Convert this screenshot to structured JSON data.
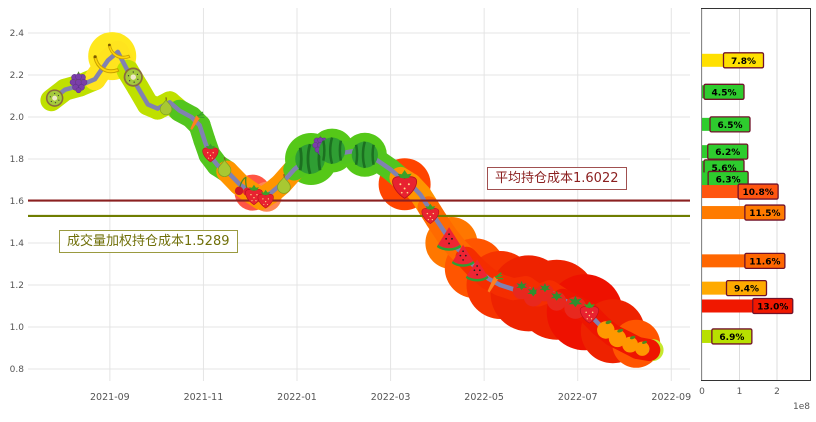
{
  "chart_data": [
    {
      "type": "line",
      "name": "price-with-cost-lines",
      "title": "",
      "xlabel": "",
      "ylabel": "",
      "xlim": [
        -0.75,
        13.4
      ],
      "ylim": [
        0.8,
        2.4
      ],
      "grid": true,
      "y_ticks": [
        0.8,
        1.0,
        1.2,
        1.4,
        1.6,
        1.8,
        2.0,
        2.2,
        2.4
      ],
      "x_ticks": [
        {
          "t": 1,
          "label": "2021-09"
        },
        {
          "t": 3,
          "label": "2021-11"
        },
        {
          "t": 5,
          "label": "2022-01"
        },
        {
          "t": 7,
          "label": "2022-03"
        },
        {
          "t": 9,
          "label": "2022-05"
        },
        {
          "t": 11,
          "label": "2022-07"
        },
        {
          "t": 13,
          "label": "2022-09"
        }
      ],
      "series": [
        {
          "name": "price",
          "color": "#8181b1",
          "points": [
            [
              -0.25,
              2.08
            ],
            [
              0.04,
              2.13
            ],
            [
              0.36,
              2.15
            ],
            [
              0.68,
              2.18
            ],
            [
              0.96,
              2.27
            ],
            [
              1.17,
              2.31
            ],
            [
              1.38,
              2.22
            ],
            [
              1.6,
              2.14
            ],
            [
              1.81,
              2.06
            ],
            [
              2.02,
              2.04
            ],
            [
              2.28,
              2.07
            ],
            [
              2.49,
              2.03
            ],
            [
              2.74,
              2.0
            ],
            [
              2.92,
              1.96
            ],
            [
              3.02,
              1.89
            ],
            [
              3.13,
              1.82
            ],
            [
              3.3,
              1.77
            ],
            [
              3.51,
              1.74
            ],
            [
              3.77,
              1.68
            ],
            [
              4.02,
              1.64
            ],
            [
              4.23,
              1.61
            ],
            [
              4.45,
              1.64
            ],
            [
              4.66,
              1.68
            ],
            [
              4.94,
              1.75
            ],
            [
              5.21,
              1.8
            ],
            [
              5.47,
              1.84
            ],
            [
              5.72,
              1.85
            ],
            [
              6.0,
              1.83
            ],
            [
              6.28,
              1.84
            ],
            [
              6.53,
              1.82
            ],
            [
              6.74,
              1.79
            ],
            [
              7.0,
              1.75
            ],
            [
              7.21,
              1.71
            ],
            [
              7.43,
              1.68
            ],
            [
              7.64,
              1.63
            ],
            [
              7.81,
              1.57
            ],
            [
              7.98,
              1.51
            ],
            [
              8.19,
              1.44
            ],
            [
              8.4,
              1.38
            ],
            [
              8.62,
              1.33
            ],
            [
              8.83,
              1.28
            ],
            [
              9.09,
              1.23
            ],
            [
              9.34,
              1.2
            ],
            [
              9.62,
              1.18
            ],
            [
              9.89,
              1.19
            ],
            [
              10.15,
              1.15
            ],
            [
              10.4,
              1.17
            ],
            [
              10.68,
              1.13
            ],
            [
              10.96,
              1.1
            ],
            [
              11.21,
              1.07
            ],
            [
              11.47,
              1.01
            ],
            [
              11.75,
              0.96
            ],
            [
              12.02,
              0.93
            ],
            [
              12.28,
              0.9
            ],
            [
              12.53,
              0.89
            ]
          ]
        }
      ],
      "ref_lines": [
        {
          "value": 1.6022,
          "color": "#8b2020",
          "label": "平均持仓成本1.6022"
        },
        {
          "value": 1.5289,
          "color": "#6f7d00",
          "label": "成交量加权持仓成本1.5289"
        }
      ],
      "fruit_markers": [
        {
          "type": "kiwi",
          "t": -0.18,
          "v": 2.09,
          "s": 20
        },
        {
          "type": "grapes",
          "t": 0.33,
          "v": 2.17,
          "s": 24
        },
        {
          "type": "banana",
          "t": 0.95,
          "v": 2.26,
          "s": 30
        },
        {
          "type": "banana",
          "t": 1.22,
          "v": 2.32,
          "s": 26
        },
        {
          "type": "kiwi",
          "t": 1.5,
          "v": 2.19,
          "s": 22
        },
        {
          "type": "pear",
          "t": 2.2,
          "v": 2.05,
          "s": 20
        },
        {
          "type": "carrot",
          "t": 2.88,
          "v": 1.98,
          "s": 20
        },
        {
          "type": "strawberry",
          "t": 3.15,
          "v": 1.83,
          "s": 22
        },
        {
          "type": "pear",
          "t": 3.45,
          "v": 1.76,
          "s": 22
        },
        {
          "type": "cherry",
          "t": 3.85,
          "v": 1.67,
          "s": 22
        },
        {
          "type": "strawberry",
          "t": 4.08,
          "v": 1.63,
          "s": 24
        },
        {
          "type": "strawberry",
          "t": 4.33,
          "v": 1.61,
          "s": 22
        },
        {
          "type": "pear",
          "t": 4.72,
          "v": 1.68,
          "s": 22
        },
        {
          "type": "watermelon",
          "t": 5.28,
          "v": 1.8,
          "s": 34
        },
        {
          "type": "grapes",
          "t": 5.5,
          "v": 1.87,
          "s": 22
        },
        {
          "type": "watermelon",
          "t": 5.75,
          "v": 1.84,
          "s": 30
        },
        {
          "type": "watermelon",
          "t": 6.45,
          "v": 1.82,
          "s": 30
        },
        {
          "type": "strawberry",
          "t": 7.3,
          "v": 1.68,
          "s": 34
        },
        {
          "type": "strawberry",
          "t": 7.85,
          "v": 1.54,
          "s": 24
        },
        {
          "type": "melon-slice",
          "t": 8.25,
          "v": 1.42,
          "s": 28
        },
        {
          "type": "melon-slice",
          "t": 8.55,
          "v": 1.34,
          "s": 26
        },
        {
          "type": "melon-slice",
          "t": 8.85,
          "v": 1.27,
          "s": 26
        },
        {
          "type": "carrot",
          "t": 9.25,
          "v": 1.21,
          "s": 22
        },
        {
          "type": "tomato",
          "t": 9.8,
          "v": 1.18,
          "s": 22
        },
        {
          "type": "tomato",
          "t": 10.05,
          "v": 1.15,
          "s": 24
        },
        {
          "type": "tomato",
          "t": 10.3,
          "v": 1.17,
          "s": 22
        },
        {
          "type": "tomato",
          "t": 10.55,
          "v": 1.13,
          "s": 24
        },
        {
          "type": "tomato",
          "t": 10.95,
          "v": 1.1,
          "s": 28
        },
        {
          "type": "strawberry",
          "t": 11.25,
          "v": 1.07,
          "s": 26
        },
        {
          "type": "orange",
          "t": 11.6,
          "v": 0.99,
          "s": 22
        },
        {
          "type": "orange",
          "t": 11.85,
          "v": 0.95,
          "s": 22
        },
        {
          "type": "orange",
          "t": 12.12,
          "v": 0.92,
          "s": 20
        },
        {
          "type": "orange",
          "t": 12.38,
          "v": 0.9,
          "s": 18
        }
      ],
      "blobs": [
        [
          1.05,
          2.29,
          24,
          "#ffe81e"
        ],
        [
          4.05,
          1.64,
          18,
          "#ff5544"
        ],
        [
          4.35,
          1.62,
          15,
          "#ff8855"
        ],
        [
          5.3,
          1.8,
          26,
          "#55c818"
        ],
        [
          5.75,
          1.84,
          22,
          "#55c818"
        ],
        [
          6.45,
          1.82,
          22,
          "#55c818"
        ],
        [
          7.3,
          1.68,
          26,
          "#ff4400"
        ],
        [
          8.3,
          1.4,
          26,
          "#ff7700"
        ],
        [
          8.8,
          1.28,
          30,
          "#ff5500"
        ],
        [
          9.35,
          1.2,
          34,
          "#f63300"
        ],
        [
          9.95,
          1.16,
          38,
          "#ee2200"
        ],
        [
          10.55,
          1.13,
          40,
          "#ee2200"
        ],
        [
          11.15,
          1.07,
          38,
          "#ee1100"
        ],
        [
          11.75,
          0.98,
          32,
          "#ee2200"
        ],
        [
          12.25,
          0.92,
          24,
          "#ff5500"
        ],
        [
          12.6,
          0.89,
          11,
          "#c6e82e"
        ]
      ]
    },
    {
      "type": "bar",
      "name": "volume-by-price",
      "orientation": "horizontal",
      "x_ticks": [
        0,
        1,
        2
      ],
      "scale_label": "1e8",
      "bars": [
        {
          "label": "7.8%",
          "value": 1.48,
          "price": 2.27,
          "color": "#ffe000"
        },
        {
          "label": "4.5%",
          "value": 0.88,
          "price": 2.12,
          "color": "#2ecc2e"
        },
        {
          "label": "6.5%",
          "value": 1.12,
          "price": 1.965,
          "color": "#2ecc2e"
        },
        {
          "label": "6.2%",
          "value": 1.06,
          "price": 1.835,
          "color": "#2ecc2e"
        },
        {
          "label": "5.6%",
          "value": 0.95,
          "price": 1.76,
          "color": "#2ecc2e"
        },
        {
          "label": "6.3%",
          "value": 1.07,
          "price": 1.705,
          "color": "#2ecc2e"
        },
        {
          "label": "10.8%",
          "value": 1.87,
          "price": 1.645,
          "color": "#ff5510"
        },
        {
          "label": "11.5%",
          "value": 2.05,
          "price": 1.545,
          "color": "#ff7b00"
        },
        {
          "label": "11.6%",
          "value": 2.05,
          "price": 1.315,
          "color": "#ff6600"
        },
        {
          "label": "9.4%",
          "value": 1.56,
          "price": 1.185,
          "color": "#ffaa00"
        },
        {
          "label": "13.0%",
          "value": 2.26,
          "price": 1.1,
          "color": "#f01800"
        },
        {
          "label": "6.9%",
          "value": 1.17,
          "price": 0.955,
          "color": "#b8e000"
        }
      ]
    }
  ]
}
